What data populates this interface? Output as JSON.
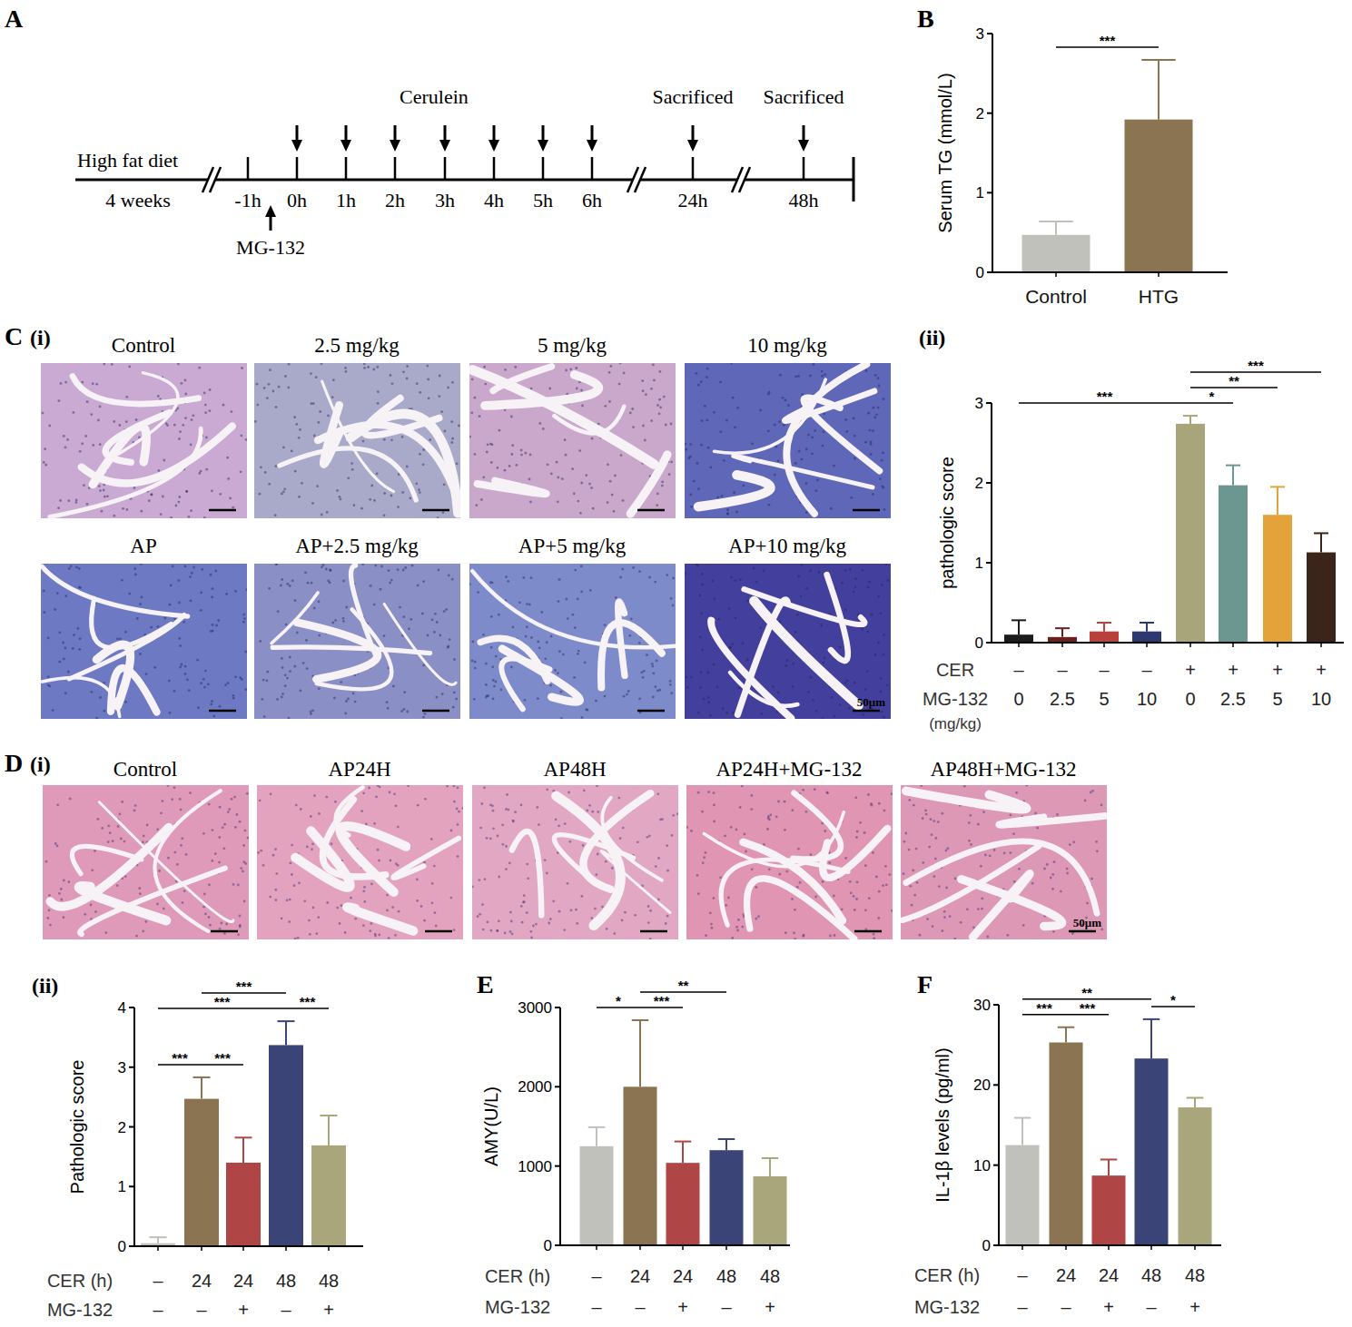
{
  "figure": {
    "panel_labels": [
      "A",
      "B",
      "C",
      "(i)",
      "(ii)",
      "D",
      "(i)",
      "(ii)",
      "E",
      "F"
    ],
    "timeline": {
      "diet_label": "High fat diet",
      "diet_duration": "4 weeks",
      "ticks": [
        "-1h",
        "0h",
        "1h",
        "2h",
        "3h",
        "4h",
        "5h",
        "6h",
        "24h",
        "48h"
      ],
      "injection_label": "Cerulein",
      "sacrifice_labels": [
        "Sacrificed",
        "Sacrificed"
      ],
      "pretreatment_label": "MG-132"
    },
    "micrographs": [
      {
        "titles": [
          "Control",
          "2.5 mg/kg",
          "5 mg/kg",
          "10 mg/kg",
          "AP",
          "AP+2.5 mg/kg",
          "AP+5 mg/kg",
          "AP+10 mg/kg"
        ],
        "scale_bar": "50μm"
      },
      {
        "titles": [
          "Control",
          "AP24H",
          "AP48H",
          "AP24H+MG-132",
          "AP48H+MG-132"
        ],
        "scale_bar": "50μm"
      }
    ]
  },
  "chart_data": [
    {
      "type": "bar",
      "y_label": "Serum TG (mmol/L)",
      "categories": [
        "Control",
        "HTG"
      ],
      "values": [
        0.47,
        1.92
      ],
      "errors": [
        0.17,
        0.75
      ],
      "colors": [
        "#c0c1bb",
        "#8a7451"
      ],
      "ylim": [
        0,
        3
      ],
      "yticks": [
        0,
        1,
        2,
        3
      ],
      "annotations": [
        {
          "text": "***",
          "from": 0,
          "to": 1
        }
      ]
    },
    {
      "type": "bar",
      "y_label": "pathologic score",
      "category_rows": [
        "CER",
        "MG-132"
      ],
      "category_unit": "(mg/kg)",
      "categories": [
        [
          "–",
          "0"
        ],
        [
          "–",
          "2.5"
        ],
        [
          "–",
          "5"
        ],
        [
          "–",
          "10"
        ],
        [
          "+",
          "0"
        ],
        [
          "+",
          "2.5"
        ],
        [
          "+",
          "5"
        ],
        [
          "+",
          "10"
        ]
      ],
      "values": [
        0.1,
        0.07,
        0.14,
        0.14,
        2.74,
        1.97,
        1.6,
        1.13
      ],
      "errors": [
        0.18,
        0.11,
        0.11,
        0.11,
        0.1,
        0.25,
        0.35,
        0.24
      ],
      "colors": [
        "#1c1c1c",
        "#6b1f1f",
        "#b8413c",
        "#2e3870",
        "#a9a57b",
        "#6c9690",
        "#e3a33a",
        "#3b2419"
      ],
      "ylim": [
        0,
        3
      ],
      "yticks": [
        0,
        1,
        2,
        3
      ],
      "annotations": [
        {
          "text": "***",
          "from": 0,
          "to": 4
        },
        {
          "text": "*",
          "from": 4,
          "to": 5
        },
        {
          "text": "**",
          "from": 4,
          "to": 6
        },
        {
          "text": "***",
          "from": 4,
          "to": 7
        }
      ]
    },
    {
      "type": "bar",
      "y_label": "Pathologic score",
      "category_rows": [
        "CER (h)",
        "MG-132"
      ],
      "categories": [
        [
          "–",
          "–"
        ],
        [
          "24",
          "–"
        ],
        [
          "24",
          "+"
        ],
        [
          "48",
          "–"
        ],
        [
          "48",
          "+"
        ]
      ],
      "values": [
        0.05,
        2.47,
        1.4,
        3.37,
        1.69
      ],
      "errors": [
        0.1,
        0.36,
        0.42,
        0.4,
        0.5
      ],
      "colors": [
        "#c0c1bb",
        "#8a7451",
        "#b04545",
        "#3b4476",
        "#aaa67c"
      ],
      "ylim": [
        0,
        4
      ],
      "yticks": [
        0,
        1,
        2,
        3,
        4
      ],
      "annotations": [
        {
          "text": "***",
          "from": 0,
          "to": 1
        },
        {
          "text": "***",
          "from": 1,
          "to": 2
        },
        {
          "text": "***",
          "from": 0,
          "to": 3
        },
        {
          "text": "***",
          "from": 1,
          "to": 3
        },
        {
          "text": "***",
          "from": 3,
          "to": 4
        }
      ]
    },
    {
      "type": "bar",
      "y_label": "AMY(U/L)",
      "category_rows": [
        "CER (h)",
        "MG-132"
      ],
      "categories": [
        [
          "–",
          "–"
        ],
        [
          "24",
          "–"
        ],
        [
          "24",
          "+"
        ],
        [
          "48",
          "–"
        ],
        [
          "48",
          "+"
        ]
      ],
      "values": [
        1250,
        2000,
        1040,
        1200,
        870
      ],
      "errors": [
        240,
        840,
        270,
        140,
        230
      ],
      "colors": [
        "#c0c1bb",
        "#8a7451",
        "#b04545",
        "#3b4476",
        "#aaa67c"
      ],
      "ylim": [
        0,
        3000
      ],
      "yticks": [
        0,
        1000,
        2000,
        3000
      ],
      "annotations": [
        {
          "text": "*",
          "from": 0,
          "to": 1
        },
        {
          "text": "***",
          "from": 1,
          "to": 2
        },
        {
          "text": "**",
          "from": 1,
          "to": 3
        }
      ]
    },
    {
      "type": "bar",
      "y_label": "IL-1β levels (pg/ml)",
      "category_rows": [
        "CER (h)",
        "MG-132"
      ],
      "categories": [
        [
          "–",
          "–"
        ],
        [
          "24",
          "–"
        ],
        [
          "24",
          "+"
        ],
        [
          "48",
          "–"
        ],
        [
          "48",
          "+"
        ]
      ],
      "values": [
        12.5,
        25.3,
        8.7,
        23.3,
        17.2
      ],
      "errors": [
        3.4,
        1.9,
        2.0,
        4.9,
        1.2
      ],
      "colors": [
        "#c0c1bb",
        "#8a7451",
        "#b04545",
        "#3b4476",
        "#aaa67c"
      ],
      "ylim": [
        0,
        30
      ],
      "yticks": [
        0,
        10,
        20,
        30
      ],
      "annotations": [
        {
          "text": "***",
          "from": 0,
          "to": 1
        },
        {
          "text": "***",
          "from": 1,
          "to": 2
        },
        {
          "text": "**",
          "from": 0,
          "to": 3
        },
        {
          "text": "*",
          "from": 3,
          "to": 4
        }
      ]
    }
  ]
}
